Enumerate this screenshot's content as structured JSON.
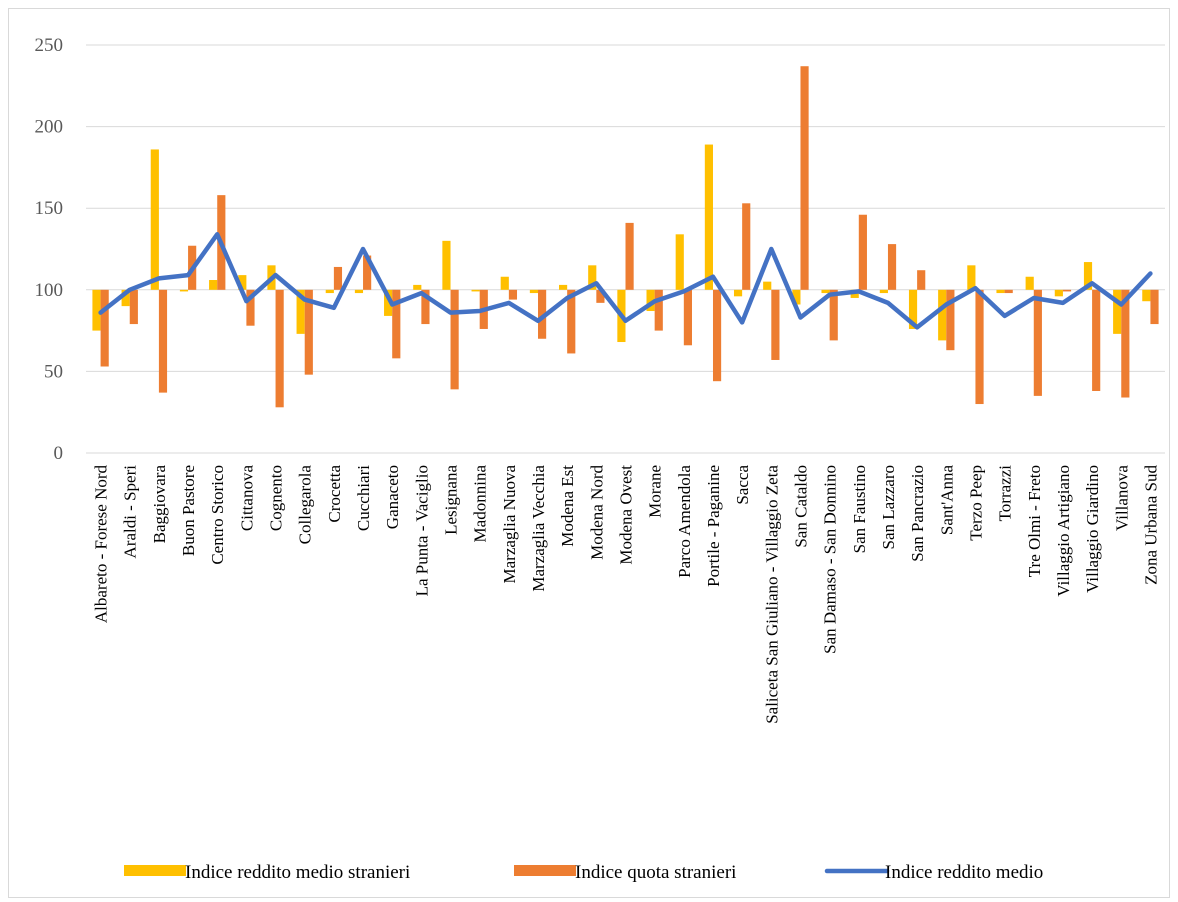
{
  "chart_data": {
    "type": "bar",
    "title": "",
    "xlabel": "",
    "ylabel": "",
    "ylim": [
      0,
      250
    ],
    "yticks": [
      0,
      50,
      100,
      150,
      200,
      250
    ],
    "baseline": 100,
    "grid": "horizontal",
    "legend_position": "bottom",
    "categories": [
      "Albareto - Forese Nord",
      "Araldi - Speri",
      "Baggiovara",
      "Buon Pastore",
      "Centro Storico",
      "Cittanova",
      "Cognento",
      "Collegarola",
      "Crocetta",
      "Cucchiari",
      "Ganaceto",
      "La Punta - Vaciglio",
      "Lesignana",
      "Madonnina",
      "Marzaglia Nuova",
      "Marzaglia Vecchia",
      "Modena Est",
      "Modena Nord",
      "Modena Ovest",
      "Morane",
      "Parco Amendola",
      "Portile - Paganine",
      "Sacca",
      "Saliceta San Giuliano - Villaggio Zeta",
      "San Cataldo",
      "San Damaso - San Donnino",
      "San Faustino",
      "San Lazzaro",
      "San Pancrazio",
      "Sant'Anna",
      "Terzo Peep",
      "Torrazzi",
      "Tre Olmi - Freto",
      "Villaggio Artigiano",
      "Villaggio Giardino",
      "Villanova",
      "Zona Urbana Sud"
    ],
    "series": [
      {
        "name": "Indice reddito medio stranieri",
        "kind": "bar",
        "color": "#FFC000",
        "values": [
          75,
          90,
          186,
          99,
          106,
          109,
          115,
          73,
          98,
          98,
          84,
          103,
          130,
          99,
          108,
          98,
          103,
          115,
          68,
          87,
          134,
          189,
          96,
          105,
          91,
          98,
          95,
          98,
          76,
          69,
          115,
          98,
          108,
          96,
          117,
          73,
          93
        ]
      },
      {
        "name": "Indice quota stranieri",
        "kind": "bar",
        "color": "#ED7D31",
        "values": [
          53,
          79,
          37,
          127,
          158,
          78,
          28,
          48,
          114,
          121,
          58,
          79,
          39,
          76,
          94,
          70,
          61,
          92,
          141,
          75,
          66,
          44,
          153,
          57,
          237,
          69,
          146,
          128,
          112,
          63,
          30,
          98,
          35,
          99,
          38,
          34,
          79
        ]
      },
      {
        "name": "Indice reddito medio",
        "kind": "line",
        "color": "#4472C4",
        "values": [
          86,
          100,
          107,
          109,
          134,
          93,
          109,
          94,
          89,
          125,
          91,
          98,
          86,
          87,
          92,
          81,
          95,
          104,
          81,
          93,
          99,
          108,
          80,
          125,
          83,
          97,
          99,
          92,
          77,
          91,
          101,
          84,
          95,
          92,
          104,
          91,
          110
        ]
      }
    ]
  }
}
